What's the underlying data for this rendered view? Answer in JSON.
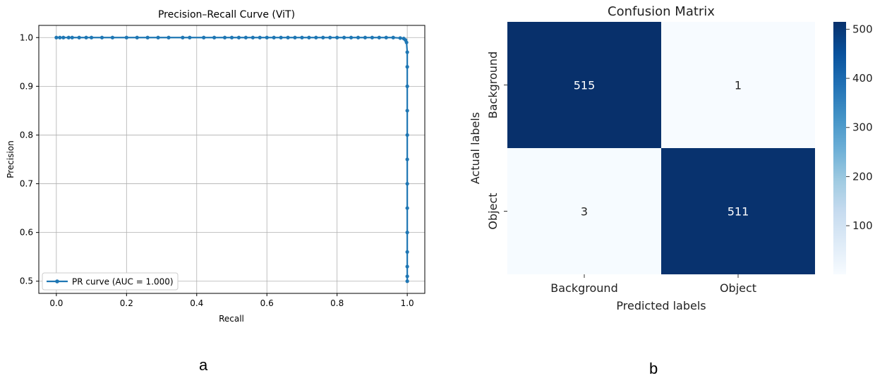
{
  "panels": {
    "a": "a",
    "b": "b"
  },
  "chart_data": [
    {
      "type": "line",
      "title": "Precision–Recall Curve (ViT)",
      "xlabel": "Recall",
      "ylabel": "Precision",
      "xlim": [
        -0.05,
        1.05
      ],
      "ylim": [
        0.475,
        1.025
      ],
      "xticks": [
        "0.0",
        "0.2",
        "0.4",
        "0.6",
        "0.8",
        "1.0"
      ],
      "yticks": [
        "0.5",
        "0.6",
        "0.7",
        "0.8",
        "0.9",
        "1.0"
      ],
      "grid": true,
      "legend_position": "lower-left",
      "series": [
        {
          "name": "PR curve (AUC = 1.000)",
          "color": "#1f77b4",
          "marker": "dot",
          "x": [
            0.0,
            0.01,
            0.02,
            0.035,
            0.045,
            0.065,
            0.085,
            0.1,
            0.13,
            0.16,
            0.2,
            0.23,
            0.26,
            0.29,
            0.32,
            0.36,
            0.38,
            0.42,
            0.45,
            0.48,
            0.5,
            0.52,
            0.54,
            0.56,
            0.58,
            0.6,
            0.62,
            0.64,
            0.66,
            0.68,
            0.7,
            0.72,
            0.74,
            0.76,
            0.78,
            0.8,
            0.82,
            0.84,
            0.86,
            0.88,
            0.9,
            0.92,
            0.94,
            0.96,
            0.98,
            0.99,
            0.995,
            0.998,
            1.0,
            1.0,
            1.0,
            1.0,
            1.0,
            1.0,
            1.0,
            1.0,
            1.0,
            1.0,
            1.0,
            1.0,
            1.0
          ],
          "y": [
            1.0,
            1.0,
            1.0,
            1.0,
            1.0,
            1.0,
            1.0,
            1.0,
            1.0,
            1.0,
            1.0,
            1.0,
            1.0,
            1.0,
            1.0,
            1.0,
            1.0,
            1.0,
            1.0,
            1.0,
            1.0,
            1.0,
            1.0,
            1.0,
            1.0,
            1.0,
            1.0,
            1.0,
            1.0,
            1.0,
            1.0,
            1.0,
            1.0,
            1.0,
            1.0,
            1.0,
            1.0,
            1.0,
            1.0,
            1.0,
            1.0,
            1.0,
            1.0,
            1.0,
            0.999,
            0.998,
            0.995,
            0.99,
            0.97,
            0.94,
            0.9,
            0.85,
            0.8,
            0.75,
            0.7,
            0.65,
            0.6,
            0.56,
            0.53,
            0.51,
            0.5
          ]
        }
      ]
    },
    {
      "type": "heatmap",
      "title": "Confusion Matrix",
      "xlabel": "Predicted labels",
      "ylabel": "Actual labels",
      "x_categories": [
        "Background",
        "Object"
      ],
      "y_categories": [
        "Background",
        "Object"
      ],
      "values": [
        [
          515,
          1
        ],
        [
          3,
          511
        ]
      ],
      "colormap": "Blues",
      "colorbar_ticks": [
        "100",
        "200",
        "300",
        "400",
        "500"
      ],
      "colorbar_range": [
        1,
        515
      ]
    }
  ]
}
